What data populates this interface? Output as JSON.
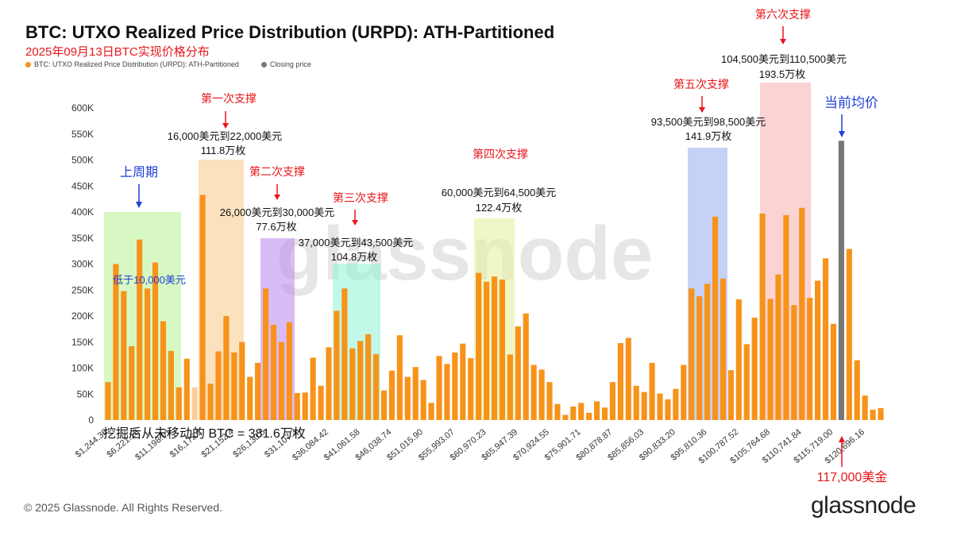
{
  "header": {
    "title": "BTC: UTXO Realized Price Distribution (URPD): ATH-Partitioned",
    "subtitle": "2025年09月13日BTC实现价格分布"
  },
  "legend": {
    "series_label": "BTC: UTXO Realized Price Distribution (URPD): ATH-Partitioned",
    "closing_label": "Closing price"
  },
  "colors": {
    "bar": "#f7931a",
    "closing": "#777777",
    "annotation_red": "#e8161b",
    "annotation_blue": "#1f3fd6"
  },
  "chart_data": {
    "type": "bar",
    "ylim": [
      0,
      600000
    ],
    "y_ticks": [
      "0",
      "50K",
      "100K",
      "150K",
      "200K",
      "250K",
      "300K",
      "350K",
      "400K",
      "450K",
      "500K",
      "550K",
      "600K"
    ],
    "x_tick_labels": [
      "$1,244.36",
      "$6,221.18",
      "$11,198.01",
      "$16,175.2",
      "$21,152.4",
      "$26,130.5",
      "$31,107.3",
      "$36,084.42",
      "$41,061.58",
      "$46,038.74",
      "$51,015.90",
      "$55,993.07",
      "$60,970.23",
      "$65,947.39",
      "$70,924.55",
      "$75,901.71",
      "$80,878.87",
      "$85,856.03",
      "$90,833.20",
      "$95,810.36",
      "$100,787.52",
      "$105,764.68",
      "$110,741.84",
      "$115,719.00",
      "$120,696.16"
    ],
    "values": [
      73000,
      300000,
      248000,
      142000,
      347000,
      253000,
      303000,
      190000,
      133000,
      63000,
      118000,
      63000,
      433000,
      70000,
      132000,
      200000,
      130000,
      150000,
      83000,
      110000,
      253000,
      183000,
      150000,
      188000,
      52000,
      53000,
      120000,
      66000,
      140000,
      210000,
      253000,
      138000,
      152000,
      165000,
      127000,
      57000,
      95000,
      163000,
      83000,
      102000,
      77000,
      33000,
      123000,
      108000,
      130000,
      147000,
      119000,
      283000,
      266000,
      276000,
      270000,
      126000,
      180000,
      205000,
      106000,
      97000,
      73000,
      31000,
      10000,
      26000,
      33000,
      14000,
      36000,
      24000,
      73000,
      148000,
      158000,
      66000,
      54000,
      110000,
      51000,
      40000,
      60000,
      106000,
      253000,
      238000,
      262000,
      391000,
      272000,
      96000,
      232000,
      146000,
      197000,
      397000,
      233000,
      280000,
      394000,
      221000,
      408000,
      235000,
      268000,
      311000,
      185000,
      537000,
      329000,
      115000,
      47000,
      20000,
      23000
    ],
    "closing_index": 93,
    "faded_index": 11
  },
  "annotations": {
    "prev_cycle": "上周期",
    "below_10k": "低于10,000美元",
    "s1_title": "第一次支撑",
    "s1_range": "16,000美元到22,000美元",
    "s1_amount": "111.8万枚",
    "s2_title": "第二次支撑",
    "s2_range": "26,000美元到30,000美元",
    "s2_amount": "77.6万枚",
    "s3_title": "第三次支撑",
    "s3_range": "37,000美元到43,500美元",
    "s3_amount": "104.8万枚",
    "s4_title": "第四次支撑",
    "s4_range": "60,000美元到64,500美元",
    "s4_amount": "122.4万枚",
    "s5_title": "第五次支撑",
    "s5_range": "93,500美元到98,500美元",
    "s5_amount": "141.9万枚",
    "s6_title": "第六次支撑",
    "s6_range": "104,500美元到110,500美元",
    "s6_amount": "193.5万枚",
    "current_avg": "当前均价",
    "price_117k": "117,000美金",
    "never_moved": "挖掘后从未移动的 BTC = 381.6万枚"
  },
  "watermark": "glassnode",
  "footer": {
    "copyright": "© 2025 Glassnode. All Rights Reserved.",
    "logo": "glassnode"
  }
}
